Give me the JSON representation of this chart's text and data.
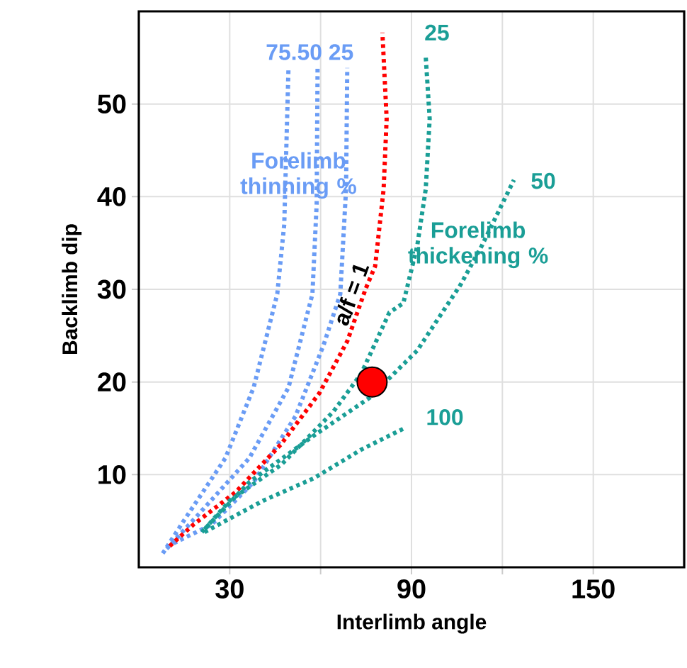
{
  "chart_data": {
    "type": "line",
    "xlabel": "Interlimb angle",
    "ylabel": "Backlimb dip",
    "xlim": [
      0,
      180
    ],
    "ylim": [
      0,
      60
    ],
    "xticks": [
      30,
      {
        "value": 60,
        "label": null
      },
      90,
      {
        "value": 120,
        "label": null
      },
      150
    ],
    "yticks": [
      10,
      20,
      30,
      40,
      50
    ],
    "grid": true,
    "series": [
      {
        "color": "#6a9cf5",
        "line_style": "dotted",
        "x": [
          7.9,
          14.8,
          28.6,
          37.9,
          45.7,
          48,
          49.4
        ],
        "values": [
          1.5,
          5,
          11.8,
          19.4,
          29.5,
          37,
          53.9
        ]
      },
      {
        "color": "#6a9cf5",
        "line_style": "dotted",
        "x": [
          9.2,
          19.4,
          36.5,
          49.4,
          57.3,
          58.7,
          59
        ],
        "values": [
          2,
          5.6,
          11.8,
          19.4,
          29.5,
          39.2,
          53.9
        ]
      },
      {
        "color": "#6a9cf5",
        "line_style": "dotted",
        "x": [
          11.5,
          24,
          37.9,
          51.7,
          61,
          66.5,
          68.4,
          68.8
        ],
        "values": [
          2.6,
          4.6,
          9.2,
          16.3,
          24,
          29.5,
          40.8,
          53.9
        ]
      },
      {
        "color": "#ff0000",
        "line_style": "dotted",
        "x": [
          10.2,
          18,
          31.9,
          47,
          59.6,
          68.8,
          74.8,
          78,
          80.8,
          81.8,
          80.4
        ],
        "values": [
          2.3,
          4.6,
          8.1,
          13.3,
          18.8,
          24.4,
          30,
          32.5,
          40.8,
          48.4,
          57.7
        ]
      },
      {
        "color": "#1a9e96",
        "line_style": "dotted",
        "x": [
          21.7,
          30,
          47.1,
          64.2,
          73.4,
          82.7,
          87.3,
          91.9,
          94.7,
          96,
          94.7
        ],
        "values": [
          4.1,
          7.2,
          11.1,
          16.8,
          20.9,
          27.5,
          28.5,
          34.7,
          40.8,
          48.4,
          55.1
        ]
      },
      {
        "color": "#1a9e96",
        "line_style": "dotted",
        "x": [
          20.8,
          36.5,
          57.7,
          76.2,
          91.9,
          106.2,
          113.2,
          123.8
        ],
        "values": [
          3.8,
          9.2,
          14.2,
          18.3,
          23.4,
          30.5,
          34.7,
          41.8
        ]
      },
      {
        "color": "#1a9e96",
        "line_style": "dotted",
        "x": [
          21.7,
          41.1,
          57.7,
          73.4,
          88.2
        ],
        "values": [
          3.8,
          7.2,
          9.6,
          12.7,
          15.1
        ]
      },
      {
        "type": "scatter",
        "marker": "circle",
        "color": "#ff0000",
        "x": [
          77
        ],
        "values": [
          20
        ]
      }
    ],
    "annotations": [
      "75.50 25",
      "25",
      "50",
      "100",
      "Forelimb thinning %",
      "Forelimb thickening %",
      "a/f = 1"
    ]
  }
}
